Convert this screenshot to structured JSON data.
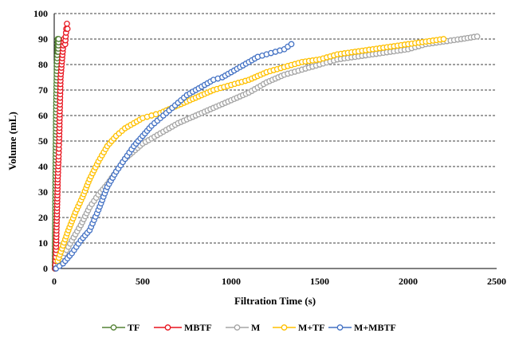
{
  "chart_data": {
    "type": "scatter",
    "xlabel": "Filtration Time (s)",
    "ylabel": "Volume (mL)",
    "xlim": [
      0,
      2500
    ],
    "ylim": [
      0,
      100
    ],
    "x_ticks": [
      "0",
      "500",
      "1000",
      "1500",
      "2000",
      "2500"
    ],
    "y_ticks": [
      "0",
      "10",
      "20",
      "30",
      "40",
      "50",
      "60",
      "70",
      "80",
      "90",
      "100"
    ],
    "grid": "horizontal dashed",
    "legend_position": "bottom",
    "series": [
      {
        "name": "TF",
        "color": "#548235",
        "x": [
          3,
          10,
          15,
          18,
          20,
          22,
          25
        ],
        "y": [
          0,
          60,
          80,
          85,
          90,
          85,
          90
        ]
      },
      {
        "name": "MBTF",
        "color": "#e8141e",
        "x": [
          5,
          10,
          15,
          20,
          25,
          28,
          32,
          36,
          42,
          48,
          55,
          62,
          68,
          72,
          75
        ],
        "y": [
          0,
          6,
          20,
          35,
          44,
          50,
          63,
          75,
          80,
          85,
          90,
          88,
          94,
          96,
          94
        ]
      },
      {
        "name": "M",
        "color": "#a5a5a5",
        "x": [
          20,
          60,
          100,
          150,
          200,
          250,
          300,
          350,
          400,
          500,
          600,
          700,
          800,
          900,
          1000,
          1100,
          1200,
          1300,
          1400,
          1500,
          1600,
          1700,
          1800,
          1900,
          2000,
          2100,
          2200,
          2300,
          2390
        ],
        "y": [
          1,
          6,
          11,
          17,
          24,
          29,
          33,
          38,
          43,
          49,
          53,
          57,
          60,
          63,
          66,
          69,
          73,
          76,
          78,
          80,
          82,
          83,
          84,
          85,
          86,
          88,
          89,
          90,
          91
        ]
      },
      {
        "name": "M+TF",
        "color": "#ffc000",
        "x": [
          20,
          50,
          80,
          120,
          160,
          200,
          250,
          300,
          350,
          400,
          450,
          500,
          550,
          600,
          700,
          800,
          900,
          1000,
          1100,
          1200,
          1300,
          1400,
          1500,
          1600,
          1700,
          1800,
          1900,
          2000,
          2100,
          2200
        ],
        "y": [
          3,
          9,
          15,
          22,
          28,
          35,
          42,
          48,
          52,
          55,
          57,
          59,
          60,
          61,
          64,
          67,
          70,
          72,
          74,
          77,
          79,
          81,
          82,
          84,
          85,
          86,
          87,
          88,
          89,
          90
        ]
      },
      {
        "name": "M+MBTF",
        "color": "#4472c4",
        "x": [
          10,
          50,
          100,
          150,
          200,
          250,
          300,
          350,
          400,
          450,
          500,
          550,
          600,
          650,
          700,
          750,
          800,
          850,
          900,
          950,
          1000,
          1050,
          1100,
          1150,
          1200,
          1250,
          1300,
          1340
        ],
        "y": [
          0,
          2,
          6,
          11,
          15,
          23,
          32,
          38,
          43,
          48,
          52,
          56,
          59,
          62,
          65,
          68,
          70,
          72,
          74,
          75,
          77,
          79,
          81,
          83,
          84,
          85,
          86,
          88
        ]
      }
    ]
  }
}
